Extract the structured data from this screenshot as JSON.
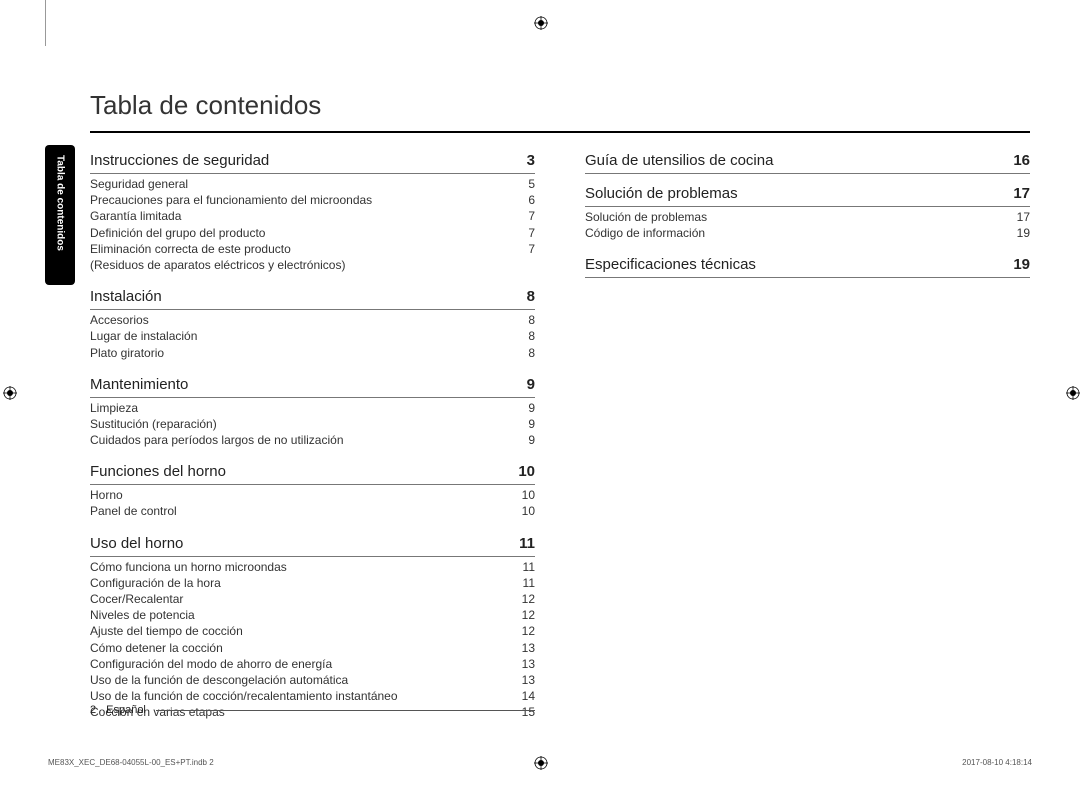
{
  "title": "Tabla de contenidos",
  "side_tab_label": "Tabla de contenidos",
  "footer_page": "2",
  "footer_lang": "Español",
  "imprint_left": "ME83X_XEC_DE68-04055L-00_ES+PT.indb   2",
  "imprint_right": "2017-08-10   4:18:14",
  "colors": {
    "text": "#222222",
    "rule": "#000000",
    "sub_rule": "#777777",
    "side_bg": "#000000",
    "side_fg": "#ffffff",
    "bg": "#ffffff"
  },
  "left_sections": [
    {
      "title": "Instrucciones de seguridad",
      "page": "3",
      "items": [
        {
          "label": "Seguridad general",
          "page": "5"
        },
        {
          "label": "Precauciones para el funcionamiento del microondas",
          "page": "6"
        },
        {
          "label": "Garantía limitada",
          "page": "7"
        },
        {
          "label": "Definición del grupo del producto",
          "page": "7"
        },
        {
          "label": "Eliminación correcta de este producto\n(Residuos de aparatos eléctricos y electrónicos)",
          "page": "7"
        }
      ]
    },
    {
      "title": "Instalación",
      "page": "8",
      "items": [
        {
          "label": "Accesorios",
          "page": "8"
        },
        {
          "label": "Lugar de instalación",
          "page": "8"
        },
        {
          "label": "Plato giratorio",
          "page": "8"
        }
      ]
    },
    {
      "title": "Mantenimiento",
      "page": "9",
      "items": [
        {
          "label": "Limpieza",
          "page": "9"
        },
        {
          "label": "Sustitución (reparación)",
          "page": "9"
        },
        {
          "label": "Cuidados para períodos largos de no utilización",
          "page": "9"
        }
      ]
    },
    {
      "title": "Funciones del horno",
      "page": "10",
      "items": [
        {
          "label": "Horno",
          "page": "10"
        },
        {
          "label": "Panel de control",
          "page": "10"
        }
      ]
    },
    {
      "title": "Uso del horno",
      "page": "11",
      "items": [
        {
          "label": "Cómo funciona un horno microondas",
          "page": "11"
        },
        {
          "label": "Configuración de la hora",
          "page": "11"
        },
        {
          "label": "Cocer/Recalentar",
          "page": "12"
        },
        {
          "label": "Niveles de potencia",
          "page": "12"
        },
        {
          "label": "Ajuste del tiempo de cocción",
          "page": "12"
        },
        {
          "label": "Cómo detener la cocción",
          "page": "13"
        },
        {
          "label": "Configuración del modo de ahorro de energía",
          "page": "13"
        },
        {
          "label": "Uso de la función de descongelación automática",
          "page": "13"
        },
        {
          "label": "Uso de la función de cocción/recalentamiento instantáneo",
          "page": "14"
        },
        {
          "label": "Cocción en varias etapas",
          "page": "15"
        }
      ]
    }
  ],
  "right_sections": [
    {
      "title": "Guía de utensilios de cocina",
      "page": "16",
      "items": []
    },
    {
      "title": "Solución de problemas",
      "page": "17",
      "items": [
        {
          "label": "Solución de problemas",
          "page": "17"
        },
        {
          "label": "Código de información",
          "page": "19"
        }
      ]
    },
    {
      "title": "Especificaciones técnicas",
      "page": "19",
      "items": []
    }
  ]
}
